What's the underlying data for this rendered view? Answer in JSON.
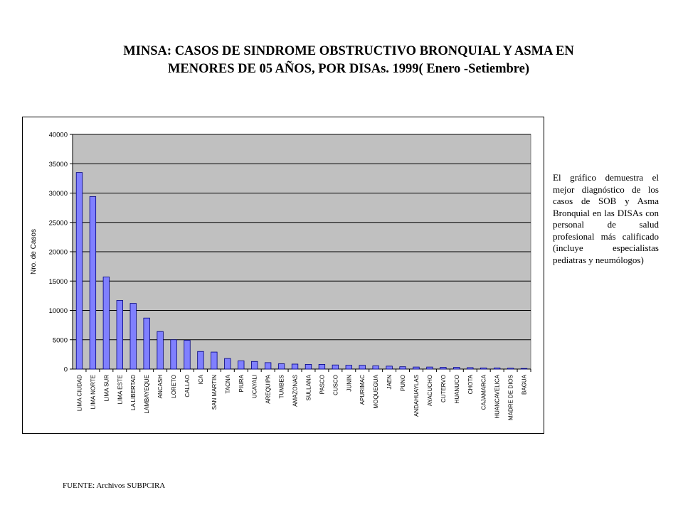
{
  "title": {
    "line1": "MINSA: CASOS DE SINDROME OBSTRUCTIVO BRONQUIAL Y ASMA EN",
    "line2": "MENORES DE 05 AÑOS, POR DISAs. 1999( Enero -Setiembre)"
  },
  "note": "El gráfico demuestra el mejor diagnóstico de los casos de SOB y Asma Bronquial en las DISAs con personal de salud profesional más calificado (incluye especialistas pediatras y neumólogos)",
  "source": "FUENTE: Archivos SUBPCIRA",
  "chart_data": {
    "type": "bar",
    "ylabel": "Nro. de Casos",
    "xlabel": "",
    "ylim": [
      0,
      40000
    ],
    "yticks": [
      0,
      5000,
      10000,
      15000,
      20000,
      25000,
      30000,
      35000,
      40000
    ],
    "grid": true,
    "legend": "none",
    "colors": {
      "bar": "#8080ff",
      "bar_edge": "#000080",
      "plot_bg": "#c0c0c0"
    },
    "categories": [
      "LIMA CIUDAD",
      "LIMA NORTE",
      "LIMA SUR",
      "LIMA ESTE",
      "LA LIBERTAD",
      "LAMBAYEQUE",
      "ANCASH",
      "LORETO",
      "CALLAO",
      "ICA",
      "SAN MARTIN",
      "TACNA",
      "PIURA",
      "UCAYALI",
      "AREQUIPA",
      "TUMBES",
      "AMAZONAS",
      "SULLANA",
      "PASCO",
      "CUSCO",
      "JUNIN",
      "APURIMAC",
      "MOQUEGUA",
      "JAEN",
      "PUNO",
      "ANDAHUAYLAS",
      "AYACUCHO",
      "CUTERVO",
      "HUANUCO",
      "CHOTA",
      "CAJAMARCA",
      "HUANCAVELICA",
      "MADRE DE DIOS",
      "BAGUA"
    ],
    "values": [
      33500,
      29400,
      15700,
      11700,
      11200,
      8700,
      6400,
      5000,
      4900,
      3000,
      2900,
      1800,
      1400,
      1300,
      1100,
      900,
      850,
      800,
      800,
      700,
      650,
      650,
      550,
      500,
      400,
      350,
      350,
      300,
      300,
      250,
      200,
      200,
      150,
      100
    ]
  }
}
